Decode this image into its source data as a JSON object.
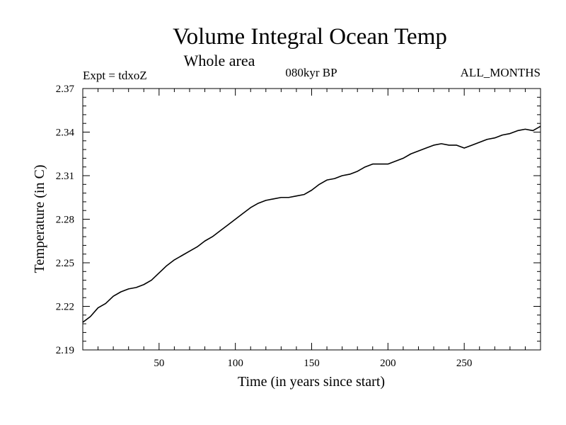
{
  "chart_data": {
    "type": "line",
    "title": "Volume Integral Ocean Temp",
    "subtitle": "Whole area",
    "annotations": {
      "left": "Expt = tdxoZ",
      "center": "080kyr BP",
      "right": "ALL_MONTHS"
    },
    "xlabel": "Time (in years since start)",
    "ylabel": "Temperature (in C)",
    "xlim": [
      0,
      300
    ],
    "ylim": [
      2.19,
      2.37
    ],
    "x_ticks": [
      50,
      100,
      150,
      200,
      250
    ],
    "x_tick_labels": [
      "50",
      "100",
      "150",
      "200",
      "250"
    ],
    "y_ticks": [
      2.19,
      2.22,
      2.25,
      2.28,
      2.31,
      2.34,
      2.37
    ],
    "y_tick_labels": [
      "2.19",
      "2.22",
      "2.25",
      "2.28",
      "2.31",
      "2.34",
      "2.37"
    ],
    "grid": false,
    "series": [
      {
        "color": "#000000",
        "x": [
          0,
          5,
          10,
          15,
          20,
          25,
          30,
          35,
          40,
          45,
          50,
          55,
          60,
          65,
          70,
          75,
          80,
          85,
          90,
          95,
          100,
          105,
          110,
          115,
          120,
          125,
          130,
          135,
          140,
          145,
          150,
          155,
          160,
          165,
          170,
          175,
          180,
          185,
          190,
          195,
          200,
          205,
          210,
          215,
          220,
          225,
          230,
          235,
          240,
          245,
          250,
          255,
          260,
          265,
          270,
          275,
          280,
          285,
          290,
          295,
          300
        ],
        "values": [
          2.209,
          2.213,
          2.219,
          2.222,
          2.227,
          2.23,
          2.232,
          2.233,
          2.235,
          2.238,
          2.243,
          2.248,
          2.252,
          2.255,
          2.258,
          2.261,
          2.265,
          2.268,
          2.272,
          2.276,
          2.28,
          2.284,
          2.288,
          2.291,
          2.293,
          2.294,
          2.295,
          2.295,
          2.296,
          2.297,
          2.3,
          2.304,
          2.307,
          2.308,
          2.31,
          2.311,
          2.313,
          2.316,
          2.318,
          2.318,
          2.318,
          2.32,
          2.322,
          2.325,
          2.327,
          2.329,
          2.331,
          2.332,
          2.331,
          2.331,
          2.329,
          2.331,
          2.333,
          2.335,
          2.336,
          2.338,
          2.339,
          2.341,
          2.342,
          2.341,
          2.344
        ]
      }
    ]
  }
}
